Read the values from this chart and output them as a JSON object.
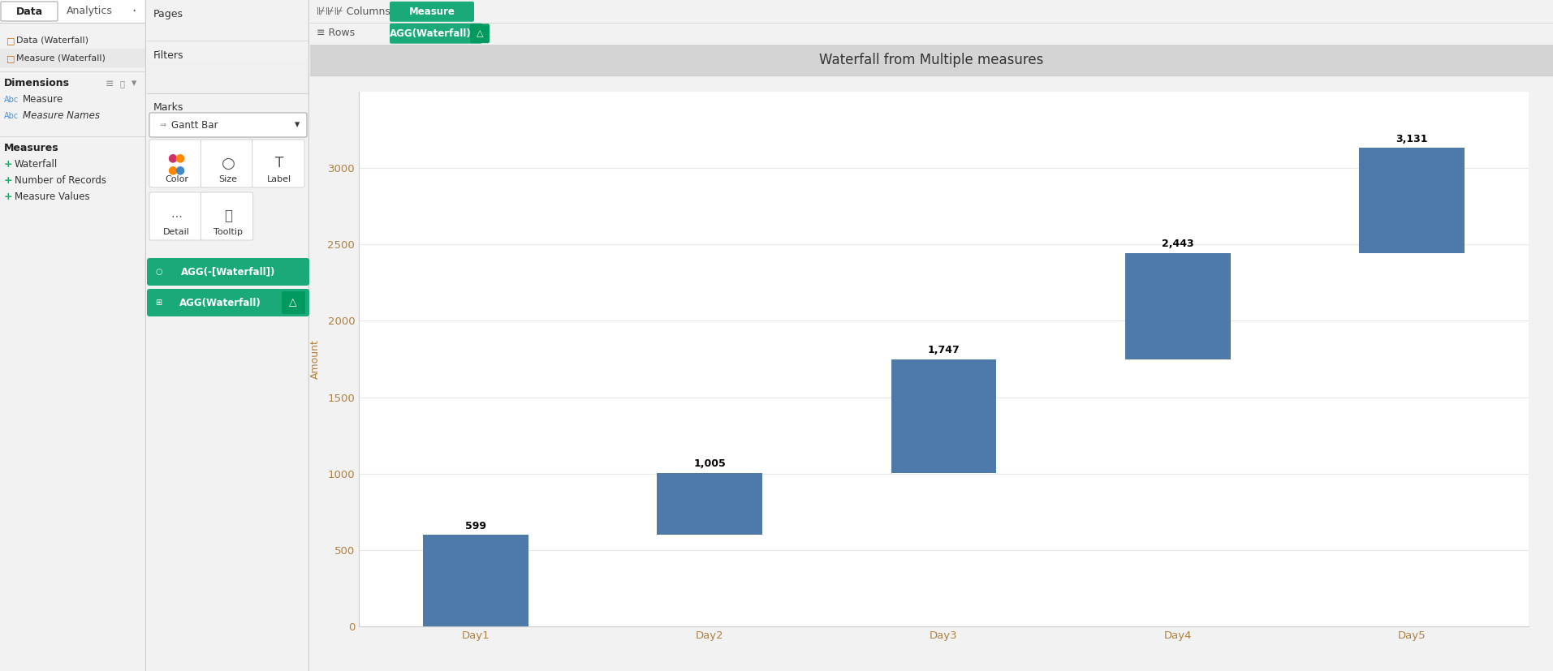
{
  "title": "Waterfall from Multiple measures",
  "categories": [
    "Day1",
    "Day2",
    "Day3",
    "Day4",
    "Day5"
  ],
  "values": [
    599,
    1005,
    1747,
    2443,
    3131
  ],
  "bar_color": "#4d7aa8",
  "bar_bottom": [
    0,
    599,
    1005,
    1747,
    2443
  ],
  "ylabel": "Amount",
  "yticks": [
    0,
    500,
    1000,
    1500,
    2000,
    2500,
    3000
  ],
  "figsize": [
    19.13,
    8.27
  ],
  "dpi": 100,
  "teal_color": "#1aaa7a",
  "teal_dark": "#009960",
  "gray_light": "#e8e8e8",
  "gray_mid": "#cccccc",
  "text_dark": "#333333",
  "text_medium": "#888888",
  "orange_text": "#b08040",
  "left_sidebar": {
    "tab_data": "Data",
    "tab_analytics": "Analytics",
    "data_sources": [
      "Data (Waterfall)",
      "Measure (Waterfall)"
    ],
    "dimensions_label": "Dimensions",
    "dim_items": [
      "Measure",
      "Measure Names"
    ],
    "measures_label": "Measures",
    "meas_items": [
      "Waterfall",
      "Number of Records",
      "Measure Values"
    ]
  },
  "right_sidebar": {
    "pages_label": "Pages",
    "filters_label": "Filters",
    "marks_label": "Marks",
    "marks_type": "Gantt Bar",
    "color_label": "Color",
    "size_label": "Size",
    "label_label": "Label",
    "detail_label": "Detail",
    "tooltip_label": "Tooltip",
    "pill1": "AGG(-[Waterfall])",
    "pill2": "AGG(Waterfall)",
    "columns_label": "Columns",
    "columns_pill": "Measure",
    "rows_label": "Rows",
    "rows_pill": "AGG(Waterfall)"
  }
}
